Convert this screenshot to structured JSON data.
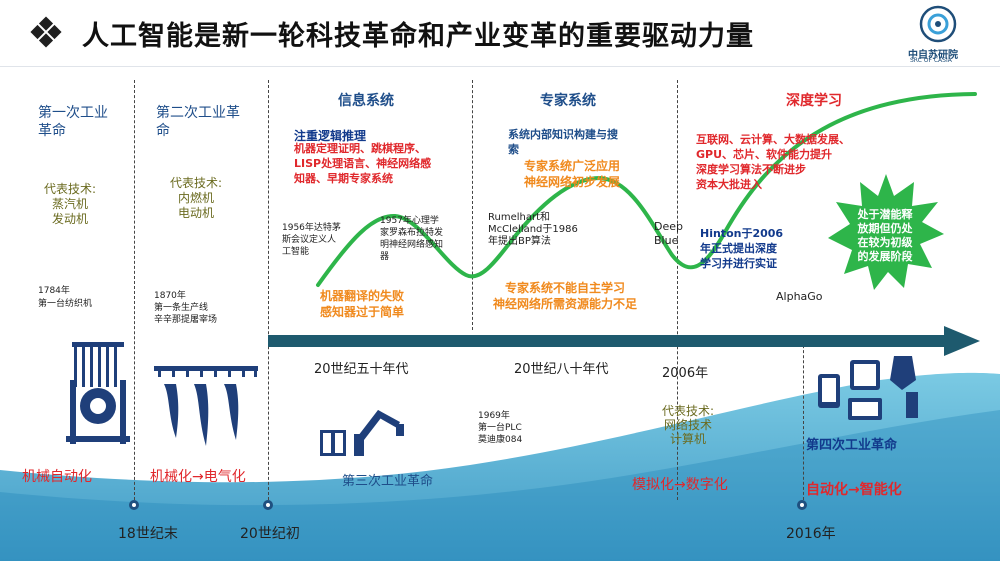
{
  "title": "人工智能是新一轮科技革命和产业变革的重要驱动力量",
  "logo": {
    "name": "中自苏研院",
    "sub": "SRC OF CASIA"
  },
  "colors": {
    "accent_blue": "#1f4e8a",
    "wave_teal": "#3fa6c8",
    "curve_green": "#2eb54a",
    "arrow": "#1e5a6e",
    "red": "#e0282c",
    "orange": "#f08a1e"
  },
  "col1": {
    "heading": [
      "第一次工业",
      "革命"
    ],
    "tech_label": "代表技术:",
    "tech": [
      "蒸汽机",
      "发动机"
    ],
    "year_note": [
      "1784年",
      "第一台纺织机"
    ],
    "bottom": "机械自动化",
    "icon": "loom-icon",
    "milestone": "18世纪末"
  },
  "col2": {
    "heading": [
      "第二次工业革",
      "命"
    ],
    "tech_label": "代表技术:",
    "tech": [
      "内燃机",
      "电动机"
    ],
    "year_note": [
      "1870年",
      "第一条生产线",
      "辛辛那提屠宰场"
    ],
    "bottom": "机械化→电气化",
    "icon": "conveyor-icon",
    "milestone": "20世纪初"
  },
  "section_info": {
    "heading": "信息系统",
    "focus": "注重逻辑推理",
    "focus_detail": [
      "机器定理证明、跳棋程序、",
      "LISP处理语言、神经网络感",
      "知器、早期专家系统"
    ],
    "note1956": [
      "1956年达特茅",
      "斯会议定义人",
      "工智能"
    ],
    "note1957": [
      "1957年心理学",
      "家罗森布拉特发",
      "明神经网络感知",
      "器"
    ],
    "failure": [
      "机器翻译的失败",
      "感知器过于简单"
    ],
    "era": "20世纪五十年代"
  },
  "section_expert": {
    "heading": "专家系统",
    "detail": [
      "系统内部知识构建与搜",
      "索"
    ],
    "green_note": [
      "专家系统广泛应用",
      "神经网络初步发展"
    ],
    "bp_note": [
      "Rumelhart和",
      "McClelland于1986",
      "年提出BP算法"
    ],
    "failure": [
      "专家系统不能自主学习",
      "神经网络所需资源能力不足"
    ],
    "era": "20世纪八十年代",
    "plc_note": [
      "1969年",
      "第一台PLC",
      "莫迪康084"
    ],
    "third_rev": "第三次工业革命",
    "tech_label": "代表技术:",
    "tech": [
      "网络技术",
      "计算机"
    ],
    "bottom": "模拟化→数字化"
  },
  "section_deep": {
    "heading": "深度学习",
    "red_note": [
      "互联网、云计算、大数据发展、",
      "GPU、芯片、软件能力提升",
      "深度学习算法不断进步",
      "资本大批进入"
    ],
    "deep_blue": [
      "Deep",
      "Blue"
    ],
    "hinton": [
      "Hinton于2006",
      "年正式提出深度",
      "学习并进行实证"
    ],
    "alphago": "AlphaGo",
    "burst": [
      "处于潜能释",
      "放期但仍处",
      "在较为初级",
      "的发展阶段"
    ],
    "era": "2006年",
    "fourth_rev": "第四次工业革命",
    "bottom": "自动化→智能化",
    "milestone": "2016年"
  }
}
